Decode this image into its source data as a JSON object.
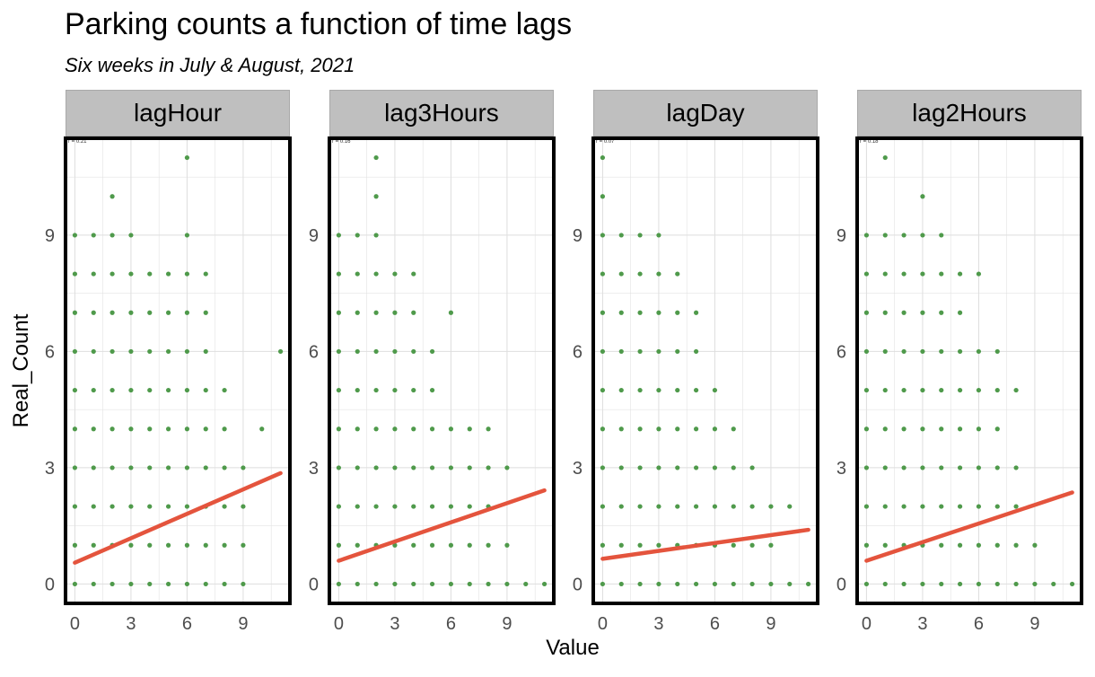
{
  "chart_data": {
    "type": "scatter",
    "title": "Parking counts a function of time lags",
    "subtitle": "Six weeks in July & August, 2021",
    "xlabel": "Value",
    "ylabel": "Real_Count",
    "xlim": [
      -0.5,
      11.5
    ],
    "ylim": [
      -0.5,
      11.5
    ],
    "x_ticks": [
      0,
      3,
      6,
      9
    ],
    "y_ticks": [
      0,
      3,
      6,
      9
    ],
    "grid": true,
    "point_color": "#4f9a4b",
    "line_color": "#e4543d",
    "border_color": "#000000",
    "panels": [
      {
        "name": "lagHour",
        "r_label": "r = 0.21",
        "fit": {
          "intercept": 0.55,
          "slope": 0.21,
          "x_range": [
            0,
            11
          ]
        },
        "points": [
          [
            0,
            0
          ],
          [
            1,
            0
          ],
          [
            2,
            0
          ],
          [
            3,
            0
          ],
          [
            4,
            0
          ],
          [
            5,
            0
          ],
          [
            6,
            0
          ],
          [
            7,
            0
          ],
          [
            8,
            0
          ],
          [
            9,
            0
          ],
          [
            0,
            1
          ],
          [
            1,
            1
          ],
          [
            2,
            1
          ],
          [
            3,
            1
          ],
          [
            4,
            1
          ],
          [
            5,
            1
          ],
          [
            6,
            1
          ],
          [
            7,
            1
          ],
          [
            8,
            1
          ],
          [
            9,
            1
          ],
          [
            0,
            2
          ],
          [
            1,
            2
          ],
          [
            2,
            2
          ],
          [
            3,
            2
          ],
          [
            4,
            2
          ],
          [
            5,
            2
          ],
          [
            6,
            2
          ],
          [
            7,
            2
          ],
          [
            8,
            2
          ],
          [
            9,
            2
          ],
          [
            0,
            3
          ],
          [
            1,
            3
          ],
          [
            2,
            3
          ],
          [
            3,
            3
          ],
          [
            4,
            3
          ],
          [
            5,
            3
          ],
          [
            6,
            3
          ],
          [
            7,
            3
          ],
          [
            8,
            3
          ],
          [
            9,
            3
          ],
          [
            0,
            4
          ],
          [
            1,
            4
          ],
          [
            2,
            4
          ],
          [
            3,
            4
          ],
          [
            4,
            4
          ],
          [
            5,
            4
          ],
          [
            6,
            4
          ],
          [
            7,
            4
          ],
          [
            8,
            4
          ],
          [
            10,
            4
          ],
          [
            0,
            5
          ],
          [
            1,
            5
          ],
          [
            2,
            5
          ],
          [
            3,
            5
          ],
          [
            4,
            5
          ],
          [
            5,
            5
          ],
          [
            6,
            5
          ],
          [
            7,
            5
          ],
          [
            8,
            5
          ],
          [
            0,
            6
          ],
          [
            1,
            6
          ],
          [
            2,
            6
          ],
          [
            3,
            6
          ],
          [
            4,
            6
          ],
          [
            5,
            6
          ],
          [
            6,
            6
          ],
          [
            7,
            6
          ],
          [
            11,
            6
          ],
          [
            0,
            7
          ],
          [
            1,
            7
          ],
          [
            2,
            7
          ],
          [
            3,
            7
          ],
          [
            4,
            7
          ],
          [
            5,
            7
          ],
          [
            6,
            7
          ],
          [
            7,
            7
          ],
          [
            0,
            8
          ],
          [
            1,
            8
          ],
          [
            2,
            8
          ],
          [
            3,
            8
          ],
          [
            4,
            8
          ],
          [
            5,
            8
          ],
          [
            6,
            8
          ],
          [
            7,
            8
          ],
          [
            0,
            9
          ],
          [
            1,
            9
          ],
          [
            2,
            9
          ],
          [
            3,
            9
          ],
          [
            6,
            9
          ],
          [
            2,
            10
          ],
          [
            6,
            11
          ]
        ]
      },
      {
        "name": "lag3Hours",
        "r_label": "r = 0.16",
        "fit": {
          "intercept": 0.6,
          "slope": 0.165,
          "x_range": [
            0,
            11
          ]
        },
        "points": [
          [
            0,
            0
          ],
          [
            1,
            0
          ],
          [
            2,
            0
          ],
          [
            3,
            0
          ],
          [
            4,
            0
          ],
          [
            5,
            0
          ],
          [
            6,
            0
          ],
          [
            7,
            0
          ],
          [
            8,
            0
          ],
          [
            9,
            0
          ],
          [
            10,
            0
          ],
          [
            11,
            0
          ],
          [
            0,
            1
          ],
          [
            1,
            1
          ],
          [
            2,
            1
          ],
          [
            3,
            1
          ],
          [
            4,
            1
          ],
          [
            5,
            1
          ],
          [
            6,
            1
          ],
          [
            7,
            1
          ],
          [
            8,
            1
          ],
          [
            9,
            1
          ],
          [
            0,
            2
          ],
          [
            1,
            2
          ],
          [
            2,
            2
          ],
          [
            3,
            2
          ],
          [
            4,
            2
          ],
          [
            5,
            2
          ],
          [
            6,
            2
          ],
          [
            7,
            2
          ],
          [
            8,
            2
          ],
          [
            0,
            3
          ],
          [
            1,
            3
          ],
          [
            2,
            3
          ],
          [
            3,
            3
          ],
          [
            4,
            3
          ],
          [
            5,
            3
          ],
          [
            6,
            3
          ],
          [
            7,
            3
          ],
          [
            8,
            3
          ],
          [
            9,
            3
          ],
          [
            0,
            4
          ],
          [
            1,
            4
          ],
          [
            2,
            4
          ],
          [
            3,
            4
          ],
          [
            4,
            4
          ],
          [
            5,
            4
          ],
          [
            6,
            4
          ],
          [
            7,
            4
          ],
          [
            8,
            4
          ],
          [
            0,
            5
          ],
          [
            1,
            5
          ],
          [
            2,
            5
          ],
          [
            3,
            5
          ],
          [
            4,
            5
          ],
          [
            5,
            5
          ],
          [
            0,
            6
          ],
          [
            1,
            6
          ],
          [
            2,
            6
          ],
          [
            3,
            6
          ],
          [
            4,
            6
          ],
          [
            5,
            6
          ],
          [
            0,
            7
          ],
          [
            1,
            7
          ],
          [
            2,
            7
          ],
          [
            3,
            7
          ],
          [
            4,
            7
          ],
          [
            6,
            7
          ],
          [
            0,
            8
          ],
          [
            1,
            8
          ],
          [
            2,
            8
          ],
          [
            3,
            8
          ],
          [
            4,
            8
          ],
          [
            0,
            9
          ],
          [
            1,
            9
          ],
          [
            2,
            9
          ],
          [
            2,
            10
          ],
          [
            2,
            11
          ]
        ]
      },
      {
        "name": "lagDay",
        "r_label": "r = 0.07",
        "fit": {
          "intercept": 0.65,
          "slope": 0.068,
          "x_range": [
            0,
            11
          ]
        },
        "points": [
          [
            0,
            0
          ],
          [
            1,
            0
          ],
          [
            2,
            0
          ],
          [
            3,
            0
          ],
          [
            4,
            0
          ],
          [
            5,
            0
          ],
          [
            6,
            0
          ],
          [
            7,
            0
          ],
          [
            8,
            0
          ],
          [
            9,
            0
          ],
          [
            10,
            0
          ],
          [
            11,
            0
          ],
          [
            0,
            1
          ],
          [
            1,
            1
          ],
          [
            2,
            1
          ],
          [
            3,
            1
          ],
          [
            4,
            1
          ],
          [
            5,
            1
          ],
          [
            6,
            1
          ],
          [
            7,
            1
          ],
          [
            8,
            1
          ],
          [
            9,
            1
          ],
          [
            0,
            2
          ],
          [
            1,
            2
          ],
          [
            2,
            2
          ],
          [
            3,
            2
          ],
          [
            4,
            2
          ],
          [
            5,
            2
          ],
          [
            6,
            2
          ],
          [
            7,
            2
          ],
          [
            8,
            2
          ],
          [
            9,
            2
          ],
          [
            10,
            2
          ],
          [
            0,
            3
          ],
          [
            1,
            3
          ],
          [
            2,
            3
          ],
          [
            3,
            3
          ],
          [
            4,
            3
          ],
          [
            5,
            3
          ],
          [
            6,
            3
          ],
          [
            7,
            3
          ],
          [
            8,
            3
          ],
          [
            0,
            4
          ],
          [
            1,
            4
          ],
          [
            2,
            4
          ],
          [
            3,
            4
          ],
          [
            4,
            4
          ],
          [
            5,
            4
          ],
          [
            6,
            4
          ],
          [
            7,
            4
          ],
          [
            0,
            5
          ],
          [
            1,
            5
          ],
          [
            2,
            5
          ],
          [
            3,
            5
          ],
          [
            4,
            5
          ],
          [
            5,
            5
          ],
          [
            6,
            5
          ],
          [
            0,
            6
          ],
          [
            1,
            6
          ],
          [
            2,
            6
          ],
          [
            3,
            6
          ],
          [
            4,
            6
          ],
          [
            5,
            6
          ],
          [
            0,
            7
          ],
          [
            1,
            7
          ],
          [
            2,
            7
          ],
          [
            3,
            7
          ],
          [
            4,
            7
          ],
          [
            5,
            7
          ],
          [
            0,
            8
          ],
          [
            1,
            8
          ],
          [
            2,
            8
          ],
          [
            3,
            8
          ],
          [
            4,
            8
          ],
          [
            0,
            9
          ],
          [
            1,
            9
          ],
          [
            2,
            9
          ],
          [
            3,
            9
          ],
          [
            0,
            10
          ],
          [
            0,
            11
          ]
        ]
      },
      {
        "name": "lag2Hours",
        "r_label": "r = 0.18",
        "fit": {
          "intercept": 0.6,
          "slope": 0.16,
          "x_range": [
            0,
            11
          ]
        },
        "points": [
          [
            0,
            0
          ],
          [
            1,
            0
          ],
          [
            2,
            0
          ],
          [
            3,
            0
          ],
          [
            4,
            0
          ],
          [
            5,
            0
          ],
          [
            6,
            0
          ],
          [
            7,
            0
          ],
          [
            8,
            0
          ],
          [
            9,
            0
          ],
          [
            10,
            0
          ],
          [
            11,
            0
          ],
          [
            0,
            1
          ],
          [
            1,
            1
          ],
          [
            2,
            1
          ],
          [
            3,
            1
          ],
          [
            4,
            1
          ],
          [
            5,
            1
          ],
          [
            6,
            1
          ],
          [
            7,
            1
          ],
          [
            8,
            1
          ],
          [
            9,
            1
          ],
          [
            0,
            2
          ],
          [
            1,
            2
          ],
          [
            2,
            2
          ],
          [
            3,
            2
          ],
          [
            4,
            2
          ],
          [
            5,
            2
          ],
          [
            6,
            2
          ],
          [
            7,
            2
          ],
          [
            8,
            2
          ],
          [
            0,
            3
          ],
          [
            1,
            3
          ],
          [
            2,
            3
          ],
          [
            3,
            3
          ],
          [
            4,
            3
          ],
          [
            5,
            3
          ],
          [
            6,
            3
          ],
          [
            7,
            3
          ],
          [
            8,
            3
          ],
          [
            0,
            4
          ],
          [
            1,
            4
          ],
          [
            2,
            4
          ],
          [
            3,
            4
          ],
          [
            4,
            4
          ],
          [
            5,
            4
          ],
          [
            6,
            4
          ],
          [
            7,
            4
          ],
          [
            0,
            5
          ],
          [
            1,
            5
          ],
          [
            2,
            5
          ],
          [
            3,
            5
          ],
          [
            4,
            5
          ],
          [
            5,
            5
          ],
          [
            6,
            5
          ],
          [
            7,
            5
          ],
          [
            8,
            5
          ],
          [
            0,
            6
          ],
          [
            1,
            6
          ],
          [
            2,
            6
          ],
          [
            3,
            6
          ],
          [
            4,
            6
          ],
          [
            5,
            6
          ],
          [
            6,
            6
          ],
          [
            7,
            6
          ],
          [
            0,
            7
          ],
          [
            1,
            7
          ],
          [
            2,
            7
          ],
          [
            3,
            7
          ],
          [
            4,
            7
          ],
          [
            5,
            7
          ],
          [
            0,
            8
          ],
          [
            1,
            8
          ],
          [
            2,
            8
          ],
          [
            3,
            8
          ],
          [
            4,
            8
          ],
          [
            5,
            8
          ],
          [
            6,
            8
          ],
          [
            0,
            9
          ],
          [
            1,
            9
          ],
          [
            2,
            9
          ],
          [
            3,
            9
          ],
          [
            4,
            9
          ],
          [
            3,
            10
          ],
          [
            1,
            11
          ]
        ]
      }
    ]
  }
}
